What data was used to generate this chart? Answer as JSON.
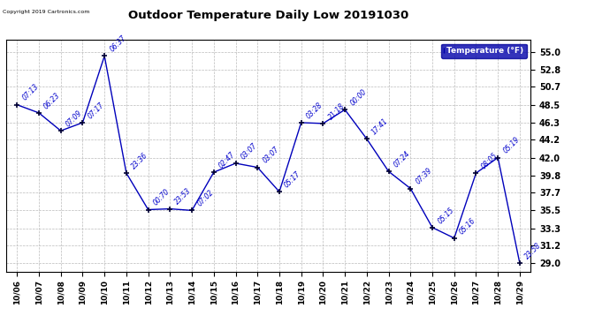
{
  "title": "Outdoor Temperature Daily Low 20191030",
  "copyright": "Copyright 2019 Cartronics.com",
  "legend_label": "Temperature (°F)",
  "x_labels": [
    "10/06",
    "10/07",
    "10/08",
    "10/09",
    "10/10",
    "10/11",
    "10/12",
    "10/13",
    "10/14",
    "10/15",
    "10/16",
    "10/17",
    "10/18",
    "10/19",
    "10/20",
    "10/21",
    "10/22",
    "10/23",
    "10/24",
    "10/25",
    "10/26",
    "10/27",
    "10/28",
    "10/29"
  ],
  "y_values": [
    48.5,
    47.5,
    45.3,
    46.3,
    54.5,
    40.1,
    35.6,
    35.7,
    35.5,
    40.2,
    41.3,
    40.8,
    37.8,
    46.3,
    46.2,
    47.9,
    44.3,
    40.3,
    38.2,
    33.4,
    32.1,
    40.1,
    42.0,
    29.0
  ],
  "annotations": [
    "07:13",
    "06:23",
    "07:09",
    "07:17",
    "06:37",
    "23:36",
    "00:70",
    "23:53",
    "07:02",
    "02:47",
    "03:07",
    "03:07",
    "05:17",
    "03:28",
    "21:18",
    "00:00",
    "17:41",
    "07:24",
    "07:39",
    "05:15",
    "05:16",
    "08:05",
    "05:19",
    "23:58"
  ],
  "y_ticks": [
    29.0,
    31.2,
    33.3,
    35.5,
    37.7,
    39.8,
    42.0,
    44.2,
    46.3,
    48.5,
    50.7,
    52.8,
    55.0
  ],
  "ylim": [
    28.0,
    56.5
  ],
  "line_color": "#0000bb",
  "marker_color": "#000033",
  "bg_color": "#ffffff",
  "grid_color": "#bbbbbb",
  "text_color": "#0000cc",
  "title_color": "#000000",
  "legend_bg": "#0000aa",
  "legend_fg": "#ffffff"
}
